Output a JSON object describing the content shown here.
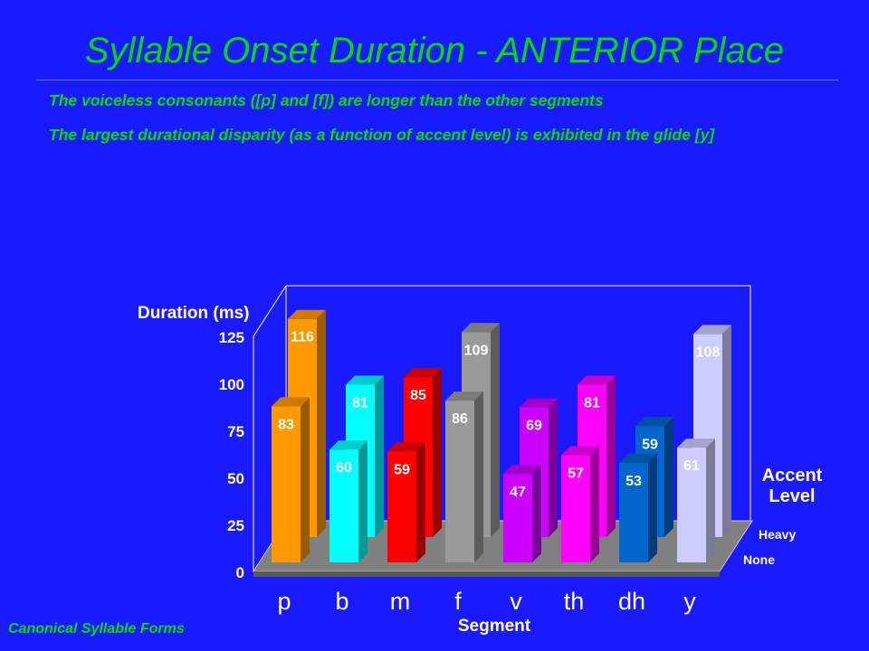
{
  "slide": {
    "title": "Syllable Onset Duration - ANTERIOR Place",
    "bullets": [
      "The voiceless consonants ([p] and [f]) are longer than the other segments",
      "The largest durational disparity (as a function of accent level) is exhibited in the glide [y]"
    ],
    "footer": "Canonical Syllable Forms"
  },
  "colors": {
    "background": "#1a1aff",
    "title_text": "#00dd00",
    "floor": "#808080",
    "axis_text": "#ffffff",
    "segments": {
      "p": "#ff9900",
      "b": "#00ffff",
      "m": "#ff0000",
      "f": "#9a9a9a",
      "v": "#cc00ff",
      "th": "#ff00ff",
      "dh": "#0066cc",
      "y": "#ccccff"
    }
  },
  "chart_data": {
    "type": "bar",
    "style": "3d",
    "categories": [
      "p",
      "b",
      "m",
      "f",
      "v",
      "th",
      "dh",
      "y"
    ],
    "series": [
      {
        "name": "Heavy",
        "values": [
          116,
          81,
          85,
          109,
          69,
          81,
          59,
          108
        ]
      },
      {
        "name": "None",
        "values": [
          83,
          60,
          59,
          86,
          47,
          57,
          53,
          61
        ]
      }
    ],
    "ylabel": "Duration (ms)",
    "xlabel": "Segment",
    "zlabel": "Accent Level",
    "ylim": [
      0,
      125
    ],
    "yticks": [
      0,
      25,
      50,
      75,
      100,
      125
    ],
    "legend_position": "right",
    "data_labels": true
  }
}
